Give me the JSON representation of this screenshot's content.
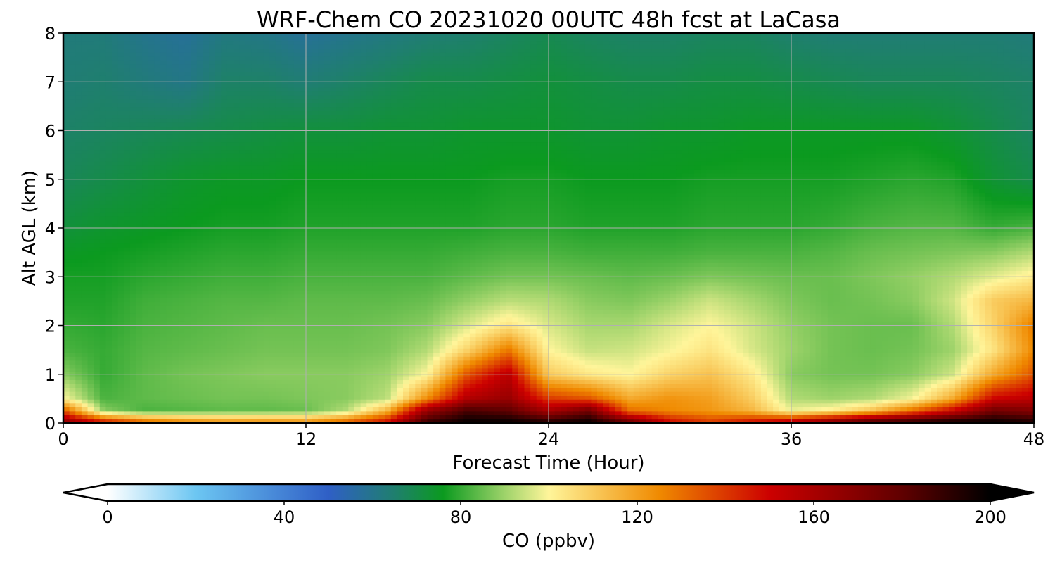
{
  "chart_data": {
    "type": "heatmap",
    "title": "WRF-Chem CO  20231020 00UTC 48h fcst at LaCasa",
    "xlabel": "Forecast Time (Hour)",
    "ylabel": "Alt AGL (km)",
    "xlim": [
      0,
      48
    ],
    "ylim": [
      0,
      8
    ],
    "x_ticks": [
      0,
      12,
      24,
      36,
      48
    ],
    "y_ticks": [
      0,
      1,
      2,
      3,
      4,
      5,
      6,
      7,
      8
    ],
    "grid": true,
    "colorbar": {
      "label": "CO  (ppbv)",
      "range": [
        0,
        200
      ],
      "ticks": [
        0,
        40,
        80,
        120,
        160,
        200
      ],
      "extend": "both",
      "orientation": "horizontal",
      "color_stops": [
        {
          "value": 0,
          "color": "#ffffff"
        },
        {
          "value": 20,
          "color": "#6cc6f2"
        },
        {
          "value": 50,
          "color": "#2f5fc6"
        },
        {
          "value": 65,
          "color": "#1f7f6e"
        },
        {
          "value": 76,
          "color": "#0b9a1f"
        },
        {
          "value": 90,
          "color": "#9ed36a"
        },
        {
          "value": 100,
          "color": "#fff59a"
        },
        {
          "value": 125,
          "color": "#f08a00"
        },
        {
          "value": 150,
          "color": "#cc0000"
        },
        {
          "value": 180,
          "color": "#600000"
        },
        {
          "value": 200,
          "color": "#000000"
        }
      ]
    },
    "x": [
      0,
      2,
      4,
      6,
      8,
      10,
      12,
      14,
      16,
      18,
      20,
      22,
      24,
      26,
      28,
      30,
      32,
      34,
      36,
      38,
      40,
      42,
      44,
      46,
      48
    ],
    "y": [
      0,
      0.25,
      0.5,
      1,
      1.5,
      2,
      2.5,
      3,
      3.5,
      4,
      5,
      6,
      7,
      8
    ],
    "z": [
      [
        170,
        150,
        135,
        128,
        125,
        126,
        125,
        135,
        150,
        190,
        200,
        200,
        195,
        200,
        180,
        150,
        140,
        150,
        160,
        175,
        190,
        195,
        200,
        200,
        195
      ],
      [
        135,
        88,
        82,
        83,
        84,
        84,
        85,
        92,
        115,
        165,
        185,
        180,
        160,
        175,
        130,
        125,
        122,
        115,
        98,
        102,
        112,
        130,
        150,
        175,
        170
      ],
      [
        100,
        82,
        84,
        85,
        86,
        86,
        87,
        88,
        93,
        125,
        158,
        165,
        140,
        135,
        118,
        123,
        120,
        110,
        92,
        90,
        92,
        99,
        118,
        150,
        155
      ],
      [
        88,
        80,
        84,
        86,
        87,
        88,
        88,
        88,
        90,
        100,
        135,
        155,
        110,
        103,
        100,
        108,
        112,
        103,
        88,
        86,
        86,
        88,
        95,
        118,
        135
      ],
      [
        82,
        80,
        83,
        84,
        85,
        86,
        86,
        86,
        87,
        92,
        108,
        128,
        100,
        94,
        95,
        99,
        104,
        96,
        90,
        86,
        85,
        86,
        90,
        104,
        125
      ],
      [
        80,
        79,
        82,
        83,
        84,
        85,
        85,
        85,
        86,
        88,
        96,
        104,
        96,
        91,
        91,
        96,
        100,
        95,
        89,
        86,
        85,
        85,
        92,
        108,
        128
      ],
      [
        78,
        78,
        81,
        82,
        83,
        83,
        84,
        84,
        84,
        85,
        89,
        93,
        92,
        88,
        87,
        90,
        95,
        91,
        87,
        85,
        86,
        88,
        95,
        110,
        115
      ],
      [
        77,
        77,
        79,
        80,
        81,
        81,
        82,
        82,
        82,
        82,
        84,
        86,
        86,
        85,
        84,
        85,
        87,
        86,
        85,
        85,
        87,
        89,
        92,
        97,
        102
      ],
      [
        75,
        76,
        77,
        78,
        79,
        79,
        80,
        80,
        80,
        80,
        81,
        82,
        82,
        81,
        81,
        81,
        82,
        82,
        82,
        83,
        85,
        86,
        87,
        88,
        92
      ],
      [
        72,
        74,
        75,
        76,
        77,
        77,
        78,
        78,
        78,
        78,
        78,
        79,
        79,
        78,
        78,
        78,
        79,
        79,
        79,
        80,
        82,
        83,
        83,
        80,
        82
      ],
      [
        68,
        70,
        72,
        74,
        75,
        75,
        76,
        76,
        76,
        76,
        76,
        77,
        77,
        76,
        76,
        76,
        77,
        77,
        77,
        77,
        78,
        79,
        78,
        73,
        70
      ],
      [
        66,
        67,
        68,
        69,
        70,
        71,
        72,
        72,
        73,
        73,
        74,
        74,
        74,
        73,
        73,
        74,
        74,
        75,
        75,
        75,
        75,
        75,
        73,
        70,
        67
      ],
      [
        64,
        65,
        63,
        61,
        66,
        66,
        64,
        66,
        68,
        70,
        70,
        71,
        72,
        71,
        70,
        70,
        71,
        71,
        70,
        69,
        68,
        68,
        68,
        67,
        66
      ],
      [
        63,
        63,
        60,
        58,
        62,
        61,
        58,
        60,
        62,
        64,
        65,
        67,
        69,
        67,
        66,
        66,
        67,
        67,
        65,
        64,
        64,
        64,
        64,
        64,
        63
      ]
    ]
  }
}
